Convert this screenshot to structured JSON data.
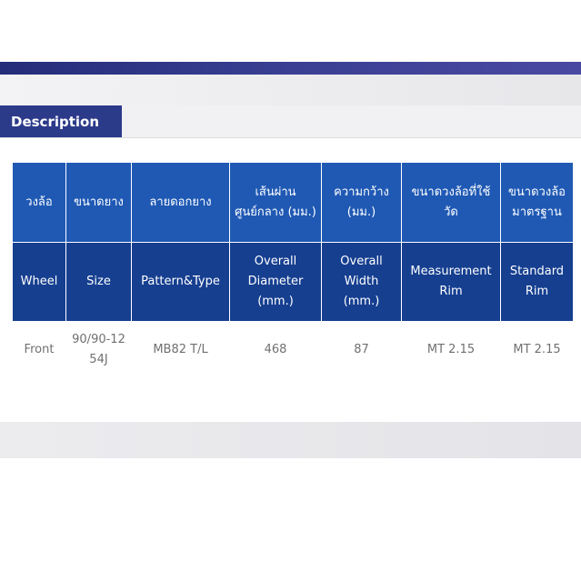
{
  "tab": {
    "label": "Description"
  },
  "table": {
    "header_thai": [
      "วงล้อ",
      "ขนาดยาง",
      "ลายดอกยาง",
      "เส้นผ่านศูนย์กลาง (มม.)",
      "ความกว้าง (มม.)",
      "ขนาดวงล้อที่ใช้วัด",
      "ขนาดวงล้อมาตรฐาน"
    ],
    "header_eng": [
      "Wheel",
      "Size",
      "Pattern&Type",
      "Overall Diameter (mm.)",
      "Overall Width (mm.)",
      "Measurement Rim",
      "Standard Rim"
    ],
    "rows": [
      [
        "Front",
        "90/90-12 54J",
        "MB82 T/L",
        "468",
        "87",
        "MT 2.15",
        "MT 2.15"
      ]
    ]
  },
  "colors": {
    "top_bar": "#2f3587",
    "tab_bg": "#2c3a8a",
    "header_thai_bg": "#1f59b4",
    "header_eng_bg": "#163f90",
    "body_text": "#707070"
  }
}
